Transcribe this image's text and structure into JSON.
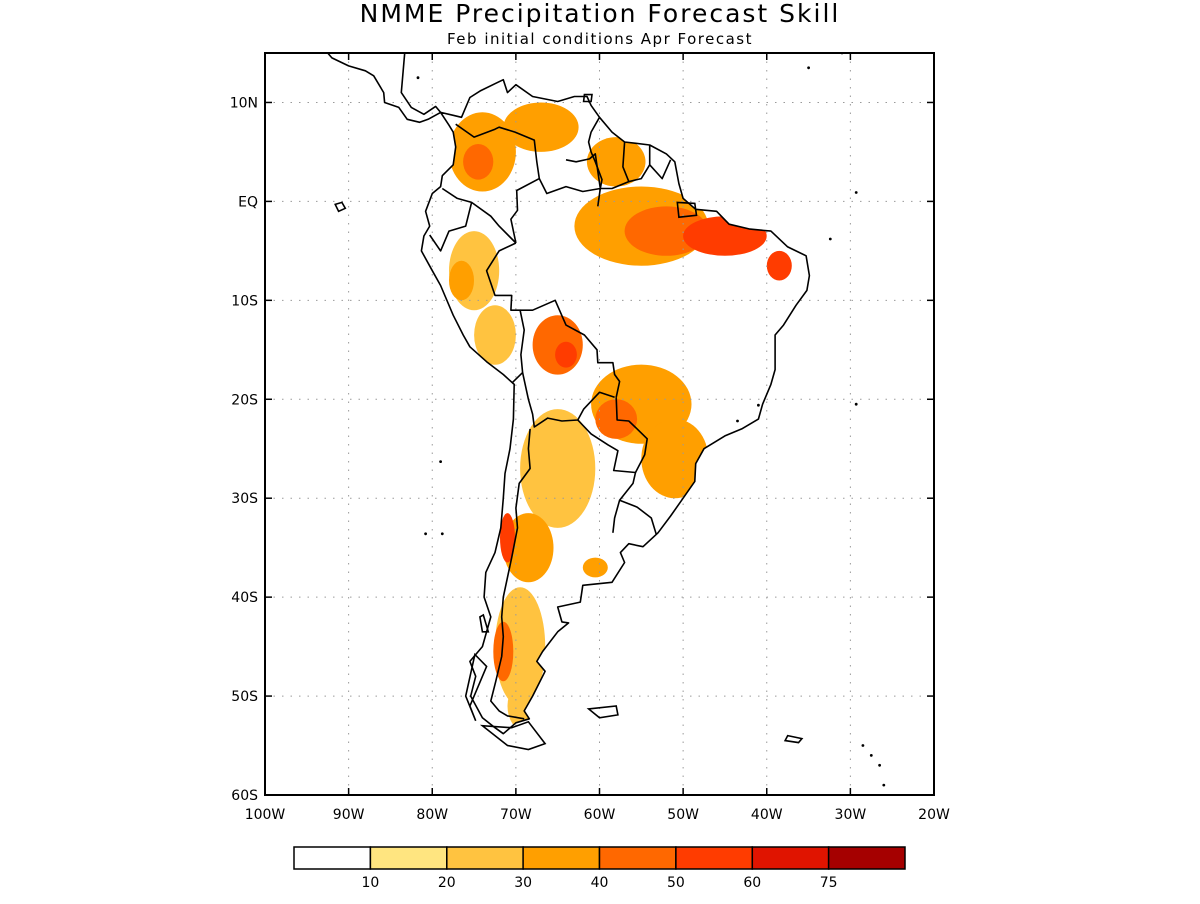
{
  "title": "NMME Precipitation Forecast Skill",
  "subtitle": "Feb initial conditions  Apr Forecast",
  "map": {
    "lon_range": [
      -100,
      -20
    ],
    "lat_range": [
      -60,
      15
    ],
    "lon_ticks": [
      {
        "value": -100,
        "label": "100W"
      },
      {
        "value": -90,
        "label": "90W"
      },
      {
        "value": -80,
        "label": "80W"
      },
      {
        "value": -70,
        "label": "70W"
      },
      {
        "value": -60,
        "label": "60W"
      },
      {
        "value": -50,
        "label": "50W"
      },
      {
        "value": -40,
        "label": "40W"
      },
      {
        "value": -30,
        "label": "30W"
      },
      {
        "value": -20,
        "label": "20W"
      }
    ],
    "lat_ticks": [
      {
        "value": 10,
        "label": "10N"
      },
      {
        "value": 0,
        "label": "EQ"
      },
      {
        "value": -10,
        "label": "10S"
      },
      {
        "value": -20,
        "label": "20S"
      },
      {
        "value": -30,
        "label": "30S"
      },
      {
        "value": -40,
        "label": "40S"
      },
      {
        "value": -50,
        "label": "50S"
      },
      {
        "value": -60,
        "label": "60S"
      }
    ],
    "grid": true,
    "skill_regions": [
      {
        "name": "northern-andes",
        "level": 30,
        "lon": -74,
        "lat": 5,
        "rx": 4,
        "ry": 4
      },
      {
        "name": "colombia-core",
        "level": 40,
        "lon": -74.5,
        "lat": 4,
        "rx": 1.8,
        "ry": 1.8
      },
      {
        "name": "venezuela",
        "level": 30,
        "lon": -67,
        "lat": 7.5,
        "rx": 4.5,
        "ry": 2.5
      },
      {
        "name": "guianas",
        "level": 30,
        "lon": -58,
        "lat": 4,
        "rx": 3.5,
        "ry": 2.5
      },
      {
        "name": "amazon-north",
        "level": 30,
        "lon": -55,
        "lat": -2.5,
        "rx": 8,
        "ry": 4
      },
      {
        "name": "amazon-east",
        "level": 40,
        "lon": -52,
        "lat": -3,
        "rx": 5,
        "ry": 2.5
      },
      {
        "name": "para-maranhao",
        "level": 50,
        "lon": -45,
        "lat": -3.5,
        "rx": 5,
        "ry": 2
      },
      {
        "name": "ceara",
        "level": 50,
        "lon": -38.5,
        "lat": -6.5,
        "rx": 1.5,
        "ry": 1.5
      },
      {
        "name": "peru-north",
        "level": 20,
        "lon": -75,
        "lat": -7,
        "rx": 3,
        "ry": 4
      },
      {
        "name": "peru-west",
        "level": 30,
        "lon": -76.5,
        "lat": -8,
        "rx": 1.5,
        "ry": 2
      },
      {
        "name": "peru-south",
        "level": 20,
        "lon": -72.5,
        "lat": -13.5,
        "rx": 2.5,
        "ry": 3
      },
      {
        "name": "bolivia",
        "level": 40,
        "lon": -65,
        "lat": -14.5,
        "rx": 3,
        "ry": 3
      },
      {
        "name": "bolivia-core",
        "level": 50,
        "lon": -64,
        "lat": -15.5,
        "rx": 1.3,
        "ry": 1.3
      },
      {
        "name": "mato-grosso",
        "level": 30,
        "lon": -55,
        "lat": -20.5,
        "rx": 6,
        "ry": 4
      },
      {
        "name": "mato-grosso-core",
        "level": 40,
        "lon": -58,
        "lat": -22,
        "rx": 2.5,
        "ry": 2
      },
      {
        "name": "parana",
        "level": 30,
        "lon": -51,
        "lat": -26,
        "rx": 4,
        "ry": 4
      },
      {
        "name": "argentina-north",
        "level": 20,
        "lon": -65,
        "lat": -27,
        "rx": 4.5,
        "ry": 6
      },
      {
        "name": "chile-central",
        "level": 30,
        "lon": -68.5,
        "lat": -35,
        "rx": 3,
        "ry": 3.5
      },
      {
        "name": "chile-core",
        "level": 50,
        "lon": -71,
        "lat": -34,
        "rx": 0.9,
        "ry": 2.5
      },
      {
        "name": "la-pampa-spot",
        "level": 30,
        "lon": -60.5,
        "lat": -37,
        "rx": 1.5,
        "ry": 1
      },
      {
        "name": "patagonia",
        "level": 20,
        "lon": -69.5,
        "lat": -45,
        "rx": 3,
        "ry": 6
      },
      {
        "name": "patagonia-core",
        "level": 40,
        "lon": -71.5,
        "lat": -45.5,
        "rx": 1.2,
        "ry": 3
      },
      {
        "name": "fuego",
        "level": 20,
        "lon": -69,
        "lat": -51,
        "rx": 2,
        "ry": 2.5
      }
    ]
  },
  "colorbar": {
    "boundary_labels": [
      "10",
      "20",
      "30",
      "40",
      "50",
      "60",
      "75"
    ],
    "colors": [
      "#ffffff",
      "#ffe580",
      "#ffc340",
      "#ff9f00",
      "#ff6800",
      "#ff3c00",
      "#e01400",
      "#a50000"
    ]
  }
}
